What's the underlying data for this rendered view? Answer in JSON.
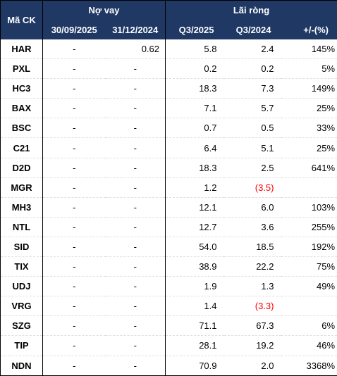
{
  "header": {
    "symbol_label": "Mã CK",
    "debt_group": "Nợ vay",
    "profit_group": "Lãi ròng",
    "debt_col1": "30/09/2025",
    "debt_col2": "31/12/2024",
    "profit_col1": "Q3/2025",
    "profit_col2": "Q3/2024",
    "change_col": "+/-(%)"
  },
  "rows": [
    {
      "symbol": "HAR",
      "debt_q3_2025": "-",
      "debt_2024": "0.62",
      "profit_q3_2025": "5.8",
      "profit_q3_2024": "2.4",
      "change": "145%"
    },
    {
      "symbol": "PXL",
      "debt_q3_2025": "-",
      "debt_2024": "-",
      "profit_q3_2025": "0.2",
      "profit_q3_2024": "0.2",
      "change": "5%"
    },
    {
      "symbol": "HC3",
      "debt_q3_2025": "-",
      "debt_2024": "-",
      "profit_q3_2025": "18.3",
      "profit_q3_2024": "7.3",
      "change": "149%"
    },
    {
      "symbol": "BAX",
      "debt_q3_2025": "-",
      "debt_2024": "-",
      "profit_q3_2025": "7.1",
      "profit_q3_2024": "5.7",
      "change": "25%"
    },
    {
      "symbol": "BSC",
      "debt_q3_2025": "-",
      "debt_2024": "-",
      "profit_q3_2025": "0.7",
      "profit_q3_2024": "0.5",
      "change": "33%"
    },
    {
      "symbol": "C21",
      "debt_q3_2025": "-",
      "debt_2024": "-",
      "profit_q3_2025": "6.4",
      "profit_q3_2024": "5.1",
      "change": "25%"
    },
    {
      "symbol": "D2D",
      "debt_q3_2025": "-",
      "debt_2024": "-",
      "profit_q3_2025": "18.3",
      "profit_q3_2024": "2.5",
      "change": "641%"
    },
    {
      "symbol": "MGR",
      "debt_q3_2025": "-",
      "debt_2024": "-",
      "profit_q3_2025": "1.2",
      "profit_q3_2024": "(3.5)",
      "change": "",
      "negative": true
    },
    {
      "symbol": "MH3",
      "debt_q3_2025": "-",
      "debt_2024": "-",
      "profit_q3_2025": "12.1",
      "profit_q3_2024": "6.0",
      "change": "103%"
    },
    {
      "symbol": "NTL",
      "debt_q3_2025": "-",
      "debt_2024": "-",
      "profit_q3_2025": "12.7",
      "profit_q3_2024": "3.6",
      "change": "255%"
    },
    {
      "symbol": "SID",
      "debt_q3_2025": "-",
      "debt_2024": "-",
      "profit_q3_2025": "54.0",
      "profit_q3_2024": "18.5",
      "change": "192%"
    },
    {
      "symbol": "TIX",
      "debt_q3_2025": "-",
      "debt_2024": "-",
      "profit_q3_2025": "38.9",
      "profit_q3_2024": "22.2",
      "change": "75%"
    },
    {
      "symbol": "UDJ",
      "debt_q3_2025": "-",
      "debt_2024": "-",
      "profit_q3_2025": "1.9",
      "profit_q3_2024": "1.3",
      "change": "49%"
    },
    {
      "symbol": "VRG",
      "debt_q3_2025": "-",
      "debt_2024": "-",
      "profit_q3_2025": "1.4",
      "profit_q3_2024": "(3.3)",
      "change": "",
      "negative": true
    },
    {
      "symbol": "SZG",
      "debt_q3_2025": "-",
      "debt_2024": "-",
      "profit_q3_2025": "71.1",
      "profit_q3_2024": "67.3",
      "change": "6%"
    },
    {
      "symbol": "TIP",
      "debt_q3_2025": "-",
      "debt_2024": "-",
      "profit_q3_2025": "28.1",
      "profit_q3_2024": "19.2",
      "change": "46%"
    },
    {
      "symbol": "NDN",
      "debt_q3_2025": "-",
      "debt_2024": "-",
      "profit_q3_2025": "70.9",
      "profit_q3_2024": "2.0",
      "change": "3368%"
    }
  ],
  "colors": {
    "header_bg": "#1f3864",
    "header_text": "#ffffff",
    "negative": "#ff0000"
  }
}
